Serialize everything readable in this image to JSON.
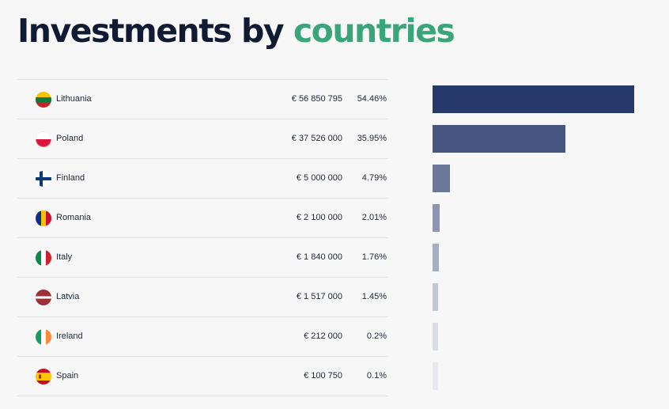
{
  "title": {
    "main": "Investments by",
    "accent": "countries"
  },
  "colors": {
    "accent": "#3aa57a",
    "bar_shades": [
      "#27386a",
      "#465680",
      "#6c7898",
      "#8c96b0",
      "#a6aec2",
      "#c2c7d4",
      "#dadde5",
      "#e6e8ee"
    ]
  },
  "rows": [
    {
      "country": "Lithuania",
      "amount": "€ 56 850 795",
      "percent": "54.46%",
      "flag": "lithuania-flag-icon"
    },
    {
      "country": "Poland",
      "amount": "€ 37 526 000",
      "percent": "35.95%",
      "flag": "poland-flag-icon"
    },
    {
      "country": "Finland",
      "amount": "€ 5 000 000",
      "percent": "4.79%",
      "flag": "finland-flag-icon"
    },
    {
      "country": "Romania",
      "amount": "€ 2 100 000",
      "percent": "2.01%",
      "flag": "romania-flag-icon"
    },
    {
      "country": "Italy",
      "amount": "€ 1 840 000",
      "percent": "1.76%",
      "flag": "italy-flag-icon"
    },
    {
      "country": "Latvia",
      "amount": "€ 1 517 000",
      "percent": "1.45%",
      "flag": "latvia-flag-icon"
    },
    {
      "country": "Ireland",
      "amount": "€ 212 000",
      "percent": "0.2%",
      "flag": "ireland-flag-icon"
    },
    {
      "country": "Spain",
      "amount": "€ 100 750",
      "percent": "0.1%",
      "flag": "spain-flag-icon"
    }
  ],
  "chart_data": {
    "type": "bar",
    "orientation": "horizontal",
    "categories": [
      "Lithuania",
      "Poland",
      "Finland",
      "Romania",
      "Italy",
      "Latvia",
      "Ireland",
      "Spain"
    ],
    "values": [
      56850795,
      37526000,
      5000000,
      2100000,
      1840000,
      1517000,
      212000,
      100750
    ],
    "percentages": [
      54.46,
      35.95,
      4.79,
      2.01,
      1.76,
      1.45,
      0.2,
      0.1
    ],
    "xlim": [
      0,
      56850795
    ],
    "grid": false
  }
}
